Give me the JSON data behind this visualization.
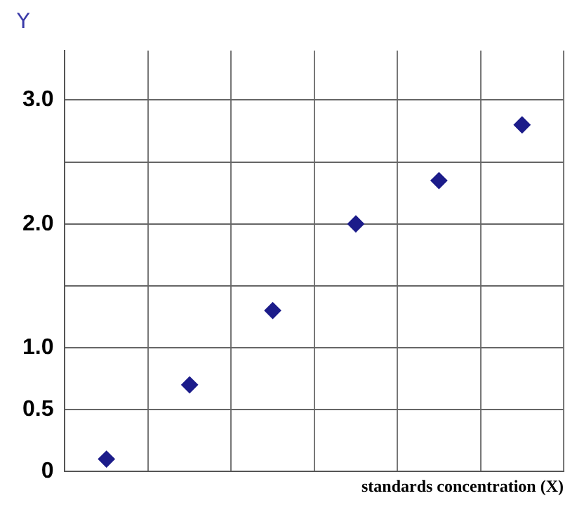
{
  "chart_data": {
    "type": "scatter",
    "xlabel": "standards concentration (X)",
    "ylabel": "Y",
    "categories": [
      null,
      null,
      null,
      null,
      null,
      null
    ],
    "values": [
      0.1,
      0.7,
      1.3,
      2.0,
      2.35,
      2.8
    ],
    "color": "#1c1c8a",
    "marker": "diamond",
    "grid": true,
    "tick_labels": "y",
    "ylim": [
      0,
      3.4
    ],
    "yticks": [
      {
        "value": 0,
        "label": "0"
      },
      {
        "value": 0.5,
        "label": "0.5"
      },
      {
        "value": 1,
        "label": "1.0"
      },
      {
        "value": 1.5,
        "label": null
      },
      {
        "value": 2,
        "label": "2.0"
      },
      {
        "value": 2.5,
        "label": null
      },
      {
        "value": 3,
        "label": "3.0"
      }
    ]
  }
}
